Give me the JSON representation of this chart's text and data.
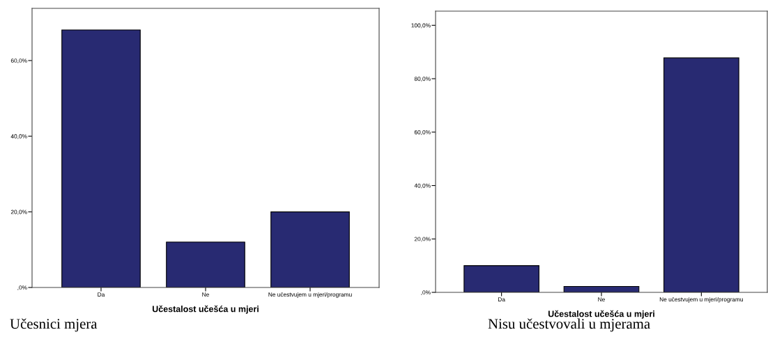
{
  "chart_data": [
    {
      "type": "bar",
      "title": "Učesnici mjera",
      "xlabel": "Učestalost učešća u mjeri",
      "categories": [
        "Da",
        "Ne",
        "Ne učestvujem u mjeri/programu"
      ],
      "values": [
        68.1,
        12.0,
        20.0
      ],
      "color": "#282a72",
      "ylim": [
        0,
        73.8
      ],
      "yticks": [
        {
          "value": 0,
          "label": ",0%"
        },
        {
          "value": 20,
          "label": "20,0%"
        },
        {
          "value": 40,
          "label": "40,0%"
        },
        {
          "value": 60,
          "label": "60,0%"
        }
      ],
      "grid": false,
      "legend": false
    },
    {
      "type": "bar",
      "title": "Nisu učestvovali u mjerama",
      "xlabel": "Učestalost učešća u mjeri",
      "categories": [
        "Da",
        "Ne",
        "Ne učestvujem u mjeri/programu"
      ],
      "values": [
        10.0,
        2.2,
        87.8
      ],
      "color": "#282a72",
      "ylim": [
        0,
        105.3
      ],
      "yticks": [
        {
          "value": 0,
          "label": ",0%"
        },
        {
          "value": 20,
          "label": "20,0%"
        },
        {
          "value": 40,
          "label": "40,0%"
        },
        {
          "value": 60,
          "label": "60,0%"
        },
        {
          "value": 80,
          "label": "80,0%"
        },
        {
          "value": 100,
          "label": "100,0%"
        }
      ],
      "grid": false,
      "legend": false
    }
  ]
}
